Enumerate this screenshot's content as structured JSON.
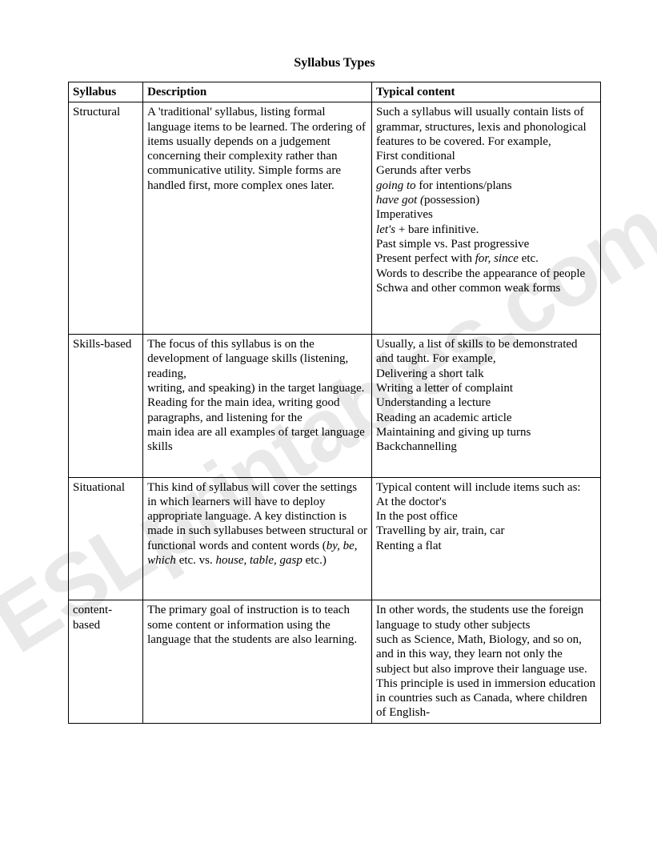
{
  "title": "Syllabus Types",
  "headers": {
    "col1": "Syllabus",
    "col2": "Description",
    "col3": "Typical content"
  },
  "rows": [
    {
      "syllabus": "Structural",
      "description": "A 'traditional' syllabus, listing formal language items to be learned.  The ordering of items usually depends on a judgement concerning their complexity rather than communicative utility.  Simple forms are handled first, more complex ones later.",
      "content_intro": "Such a syllabus will usually contain lists of grammar, structures, lexis and phonological features to be covered.  For example,",
      "content_lines": [
        "First conditional",
        "Gerunds after verbs"
      ],
      "content_italic_lines": [
        {
          "prefix_i": "going to",
          "rest": " for intentions/plans"
        },
        {
          "prefix_i": "have got (",
          "rest": "possession)"
        }
      ],
      "content_mid": "Imperatives",
      "content_italic2": {
        "prefix_i": "let's",
        "rest": " + bare infinitive."
      },
      "content_after": [
        "Past simple vs. Past progressive"
      ],
      "content_pp": {
        "pre": "Present perfect with ",
        "i": "for, since",
        "post": " etc."
      },
      "content_tail": [
        "Words to describe the appearance of people",
        "Schwa and other common weak forms"
      ]
    },
    {
      "syllabus": "Skills-based",
      "description_lines": [
        "The focus of this syllabus is on the development of language skills (listening, reading,",
        "writing, and speaking) in the target language. Reading for the main idea, writing good paragraphs, and listening for the",
        "main idea are all examples of target language skills"
      ],
      "content_intro": "Usually, a list of skills to be demonstrated and taught.  For example,",
      "content_list": [
        "Delivering a short talk",
        "Writing a letter of complaint",
        "Understanding a lecture",
        "Reading an academic article",
        "Maintaining and giving up turns",
        "Backchannelling"
      ]
    },
    {
      "syllabus": "Situational",
      "desc_pre": "This kind of syllabus will cover the settings in which learners will have to deploy appropriate language.  A key distinction is made in such syllabuses between structural or functional words and content words (",
      "desc_i1": "by, be, which",
      "desc_mid": " etc. vs. ",
      "desc_i2": "house, table, gasp",
      "desc_post": " etc.)",
      "content_intro": "Typical content will include items such as:",
      "content_list": [
        "At the doctor's",
        "In the post office",
        "Travelling by air, train, car",
        "Renting a flat"
      ]
    },
    {
      "syllabus": "content-based",
      "description": "The primary goal of instruction is to teach some content or information using the language that the students are also learning.",
      "content_lines": [
        "In other words, the students use the foreign language to study other subjects",
        "such as Science, Math, Biology, and so on, and in this way, they learn not only the subject but also improve their language use. This principle is used in immersion education in countries such as Canada, where children of English-"
      ]
    }
  ],
  "watermark": "ESLprintables.com"
}
